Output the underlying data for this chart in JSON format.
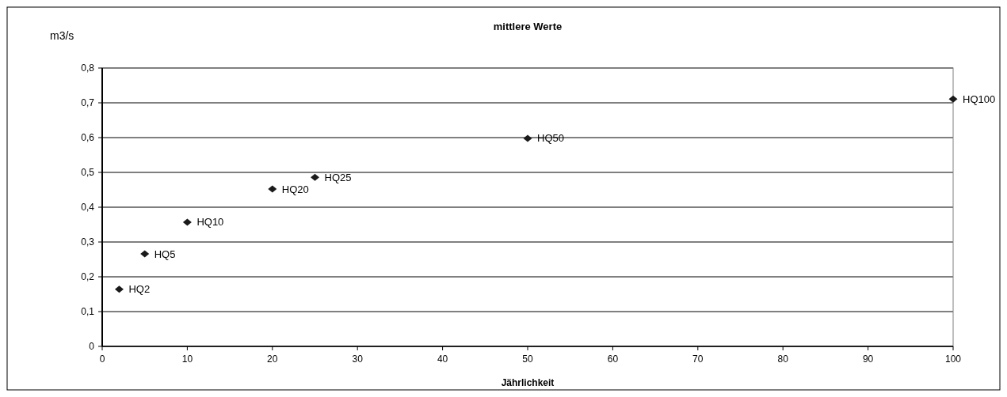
{
  "chart_data": {
    "type": "scatter",
    "title": "mittlere Werte",
    "xlabel": "Jährlichkeit",
    "ylabel": "m3/s",
    "x": [
      2,
      5,
      10,
      20,
      25,
      50,
      100
    ],
    "series": [
      {
        "color": "#1a1a1a",
        "values": [
          0.164,
          0.266,
          0.357,
          0.452,
          0.486,
          0.598,
          0.711
        ]
      }
    ],
    "xlim": [
      0,
      100
    ],
    "xticks": [
      0,
      10,
      20,
      30,
      40,
      50,
      60,
      70,
      80,
      90,
      100
    ],
    "ylim": [
      0,
      0.8
    ],
    "yticks": [
      0,
      {
        "value": 0.1,
        "label": "0,1"
      },
      {
        "value": 0.2,
        "label": "0,2"
      },
      {
        "value": 0.3,
        "label": "0,3"
      },
      {
        "value": 0.4,
        "label": "0,4"
      },
      {
        "value": 0.5,
        "label": "0,5"
      },
      {
        "value": 0.6,
        "label": "0,6"
      },
      {
        "value": 0.7,
        "label": "0,7"
      },
      {
        "value": 0.8,
        "label": "0,8"
      }
    ],
    "grid": "y",
    "marker": "diamond",
    "annotations": [
      {
        "text": "HQ2",
        "x": 2,
        "y": 0.164
      },
      {
        "text": "HQ5",
        "x": 5,
        "y": 0.266
      },
      {
        "text": "HQ10",
        "x": 10,
        "y": 0.357
      },
      {
        "text": "HQ20",
        "x": 20,
        "y": 0.452
      },
      {
        "text": "HQ25",
        "x": 25,
        "y": 0.486
      },
      {
        "text": "HQ50",
        "x": 50,
        "y": 0.598
      },
      {
        "text": "HQ100",
        "x": 100,
        "y": 0.711
      }
    ]
  }
}
